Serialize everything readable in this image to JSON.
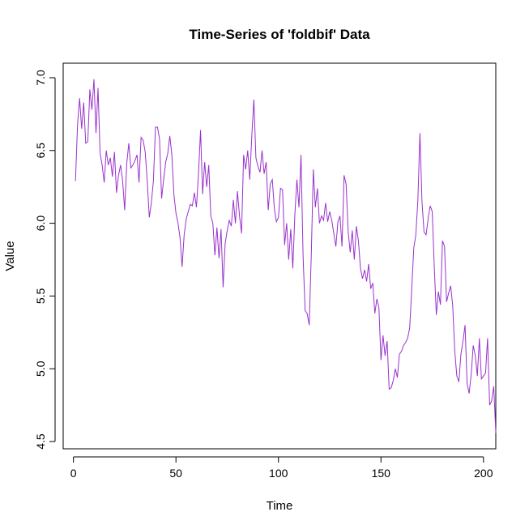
{
  "chart_data": {
    "type": "line",
    "title": "Time-Series of 'foldbif' Data",
    "xlabel": "Time",
    "ylabel": "Value",
    "xlim": [
      -5,
      206
    ],
    "ylim": [
      4.45,
      7.1
    ],
    "x_ticks": [
      0,
      50,
      100,
      150,
      200
    ],
    "x_tick_labels": [
      "0",
      "50",
      "100",
      "150",
      "200"
    ],
    "y_ticks": [
      4.5,
      5.0,
      5.5,
      6.0,
      6.5,
      7.0
    ],
    "y_tick_labels": [
      "4.5",
      "5.0",
      "5.5",
      "6.0",
      "6.5",
      "7.0"
    ],
    "grid": false,
    "line_color": "#9932CC",
    "series": [
      {
        "x_start": 1,
        "x_step": 1,
        "values": [
          6.29,
          6.68,
          6.86,
          6.65,
          6.83,
          6.55,
          6.56,
          6.92,
          6.78,
          6.99,
          6.62,
          6.93,
          6.48,
          6.4,
          6.28,
          6.5,
          6.4,
          6.45,
          6.32,
          6.49,
          6.21,
          6.33,
          6.4,
          6.29,
          6.09,
          6.41,
          6.55,
          6.38,
          6.4,
          6.43,
          6.47,
          6.28,
          6.59,
          6.57,
          6.49,
          6.29,
          6.04,
          6.14,
          6.29,
          6.66,
          6.66,
          6.58,
          6.17,
          6.3,
          6.42,
          6.48,
          6.6,
          6.47,
          6.2,
          6.07,
          6.0,
          5.9,
          5.7,
          5.92,
          6.03,
          6.08,
          6.13,
          6.12,
          6.21,
          6.11,
          6.34,
          6.64,
          6.2,
          6.42,
          6.25,
          6.4,
          6.05,
          6.0,
          5.78,
          5.97,
          5.76,
          5.96,
          5.56,
          5.86,
          5.95,
          6.02,
          5.98,
          6.16,
          6.0,
          6.22,
          6.05,
          5.93,
          6.47,
          6.37,
          6.5,
          6.3,
          6.6,
          6.85,
          6.45,
          6.39,
          6.35,
          6.5,
          6.34,
          6.42,
          6.09,
          6.27,
          6.3,
          6.1,
          6.01,
          6.04,
          6.24,
          6.23,
          5.85,
          6.0,
          5.75,
          5.96,
          5.69,
          6.06,
          6.3,
          6.11,
          6.47,
          5.78,
          5.4,
          5.38,
          5.3,
          5.78,
          6.37,
          6.11,
          6.24,
          6.0,
          6.05,
          6.02,
          6.14,
          6.01,
          6.08,
          6.02,
          5.93,
          5.84,
          6.01,
          6.05,
          5.84,
          6.33,
          6.27,
          5.94,
          5.8,
          5.95,
          5.75,
          5.98,
          5.88,
          5.69,
          5.62,
          5.68,
          5.6,
          5.72,
          5.55,
          5.59,
          5.38,
          5.48,
          5.42,
          5.06,
          5.23,
          5.09,
          5.19,
          4.86,
          4.87,
          4.92,
          5.0,
          4.94,
          5.1,
          5.12,
          5.16,
          5.18,
          5.21,
          5.28,
          5.55,
          5.83,
          5.92,
          6.16,
          6.62,
          6.15,
          5.94,
          5.92,
          6.03,
          6.12,
          6.08,
          5.7,
          5.37,
          5.53,
          5.44,
          5.88,
          5.84,
          5.46,
          5.52,
          5.57,
          5.43,
          5.12,
          4.95,
          4.91,
          5.1,
          5.19,
          5.3,
          4.9,
          4.83,
          4.96,
          5.16,
          5.09,
          4.95,
          5.21,
          4.93,
          4.95,
          4.97,
          5.21,
          4.75,
          4.78,
          4.88,
          4.56
        ]
      }
    ]
  }
}
